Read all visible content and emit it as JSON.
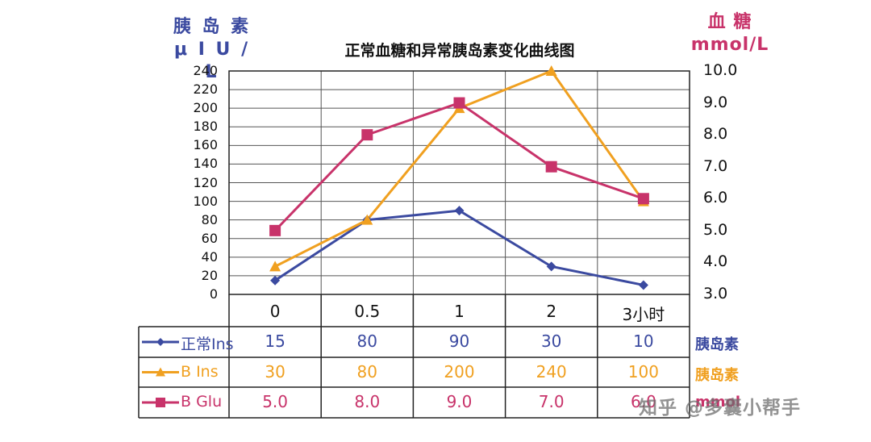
{
  "chart_data": {
    "type": "line",
    "title": "正常血糖和异常胰岛素变化曲线图",
    "y_left_label": [
      "胰 岛 素",
      "μ I U / L"
    ],
    "y_right_label": [
      "血 糖",
      "mmol/L"
    ],
    "categories": [
      "0",
      "0.5",
      "1",
      "2",
      "3小时"
    ],
    "y_left_ticks": [
      "0",
      "20",
      "40",
      "60",
      "80",
      "100",
      "120",
      "140",
      "160",
      "180",
      "200",
      "220",
      "240"
    ],
    "y_left_range": [
      0,
      240
    ],
    "y_right_ticks": [
      "3.0",
      "4.0",
      "5.0",
      "6.0",
      "7.0",
      "8.0",
      "9.0",
      "10.0"
    ],
    "y_right_range": [
      3.0,
      10.0
    ],
    "series": [
      {
        "name": "正常Ins",
        "axis": "left",
        "marker": "diamond",
        "color": "#3b4aa0",
        "values": [
          15,
          80,
          90,
          30,
          10
        ],
        "labels": [
          "15",
          "80",
          "90",
          "30",
          "10"
        ],
        "unit": "胰岛素"
      },
      {
        "name": "B Ins",
        "axis": "left",
        "marker": "triangle",
        "color": "#f0a020",
        "values": [
          30,
          80,
          200,
          240,
          100
        ],
        "labels": [
          "30",
          "80",
          "200",
          "240",
          "100"
        ],
        "unit": "胰岛素"
      },
      {
        "name": "B Glu",
        "axis": "right",
        "marker": "square",
        "color": "#c8336a",
        "values": [
          5.0,
          8.0,
          9.0,
          7.0,
          6.0
        ],
        "labels": [
          "5.0",
          "8.0",
          "9.0",
          "7.0",
          "6.0"
        ],
        "unit": "mmol"
      }
    ],
    "grid": true
  },
  "watermark": "知乎 @多囊小帮手"
}
